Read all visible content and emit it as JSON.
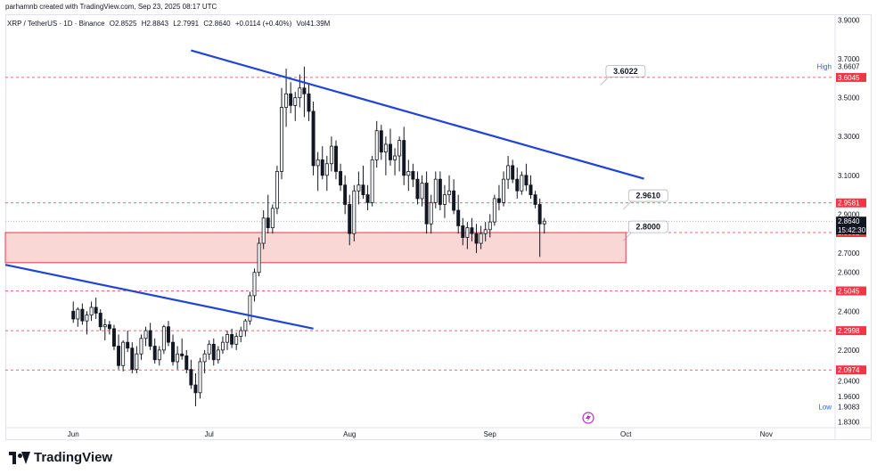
{
  "header": {
    "credit": "parhamnb created with TradingView.com, Sep 23, 2025 08:17 UTC",
    "symbol": "XRP / TetherUS · 1D · Binance",
    "open": "O2.8525",
    "high": "H2.8843",
    "low": "L2.7991",
    "close": "C2.8640",
    "change": "+0.0114 (+0.40%)",
    "volume": "Vol41.39M"
  },
  "footer": {
    "brand": "TradingView"
  },
  "colors": {
    "up": "#ffffff",
    "down": "#131722",
    "trendline": "#1e44d8",
    "level": "#f23645",
    "zone_fill": "#f8d7d4",
    "current": "#131722"
  },
  "chart_data": {
    "type": "candlestick",
    "x_axis_labels": [
      "Jun",
      "Jul",
      "Aug",
      "Sep",
      "Oct",
      "Nov"
    ],
    "y_ticks": [
      "3.9000",
      "3.7000",
      "3.5000",
      "3.3000",
      "3.1000",
      "2.9000",
      "2.7000",
      "2.6000",
      "2.4000",
      "2.2000",
      "2.0400",
      "1.9600",
      "1.8300"
    ],
    "y_tick_values": [
      3.9,
      3.7,
      3.5,
      3.3,
      3.1,
      2.9,
      2.7,
      2.6,
      2.4,
      2.2,
      2.04,
      1.96,
      1.83
    ],
    "ylim": [
      1.8,
      3.93
    ],
    "x_range_days": [
      -15,
      168
    ],
    "x_month_day": {
      "Jun": 0,
      "Jul": 30,
      "Aug": 61,
      "Sep": 92,
      "Oct": 122,
      "Nov": 153
    },
    "horizontal_levels": [
      {
        "value": 3.6045,
        "label": "3.6045"
      },
      {
        "value": 2.9581,
        "label": "2.9581"
      },
      {
        "value": 2.8052,
        "label": "2.8052"
      },
      {
        "value": 2.5045,
        "label": "2.5045"
      },
      {
        "value": 2.2998,
        "label": "2.2998"
      },
      {
        "value": 2.0974,
        "label": "2.0974"
      }
    ],
    "current_price": {
      "value": 2.864,
      "label": "2.8640",
      "countdown": "15:42:30"
    },
    "high_marker": {
      "tag": "High",
      "value": 3.6607,
      "label": "3.6607"
    },
    "low_marker": {
      "tag": "Low",
      "value": 1.9083,
      "label": "1.9083"
    },
    "callouts": [
      {
        "label": "3.6022",
        "value": 3.6022,
        "day": 118
      },
      {
        "label": "2.9610",
        "value": 2.961,
        "day": 123
      },
      {
        "label": "2.8000",
        "value": 2.8,
        "day": 123
      }
    ],
    "zone": {
      "top": 2.8052,
      "bottom": 2.65,
      "day_start": -15,
      "day_end": 122
    },
    "trendlines": [
      {
        "name": "upper",
        "points": [
          [
            26,
            3.7436
          ],
          [
            126,
            3.0825
          ]
        ]
      },
      {
        "name": "lower",
        "points": [
          [
            -15,
            2.639
          ],
          [
            53,
            2.3106
          ]
        ]
      }
    ],
    "candles": [
      [
        2.4,
        2.45,
        2.34,
        2.36
      ],
      [
        2.36,
        2.42,
        2.32,
        2.41
      ],
      [
        2.41,
        2.44,
        2.33,
        2.35
      ],
      [
        2.35,
        2.4,
        2.28,
        2.38
      ],
      [
        2.38,
        2.45,
        2.35,
        2.42
      ],
      [
        2.42,
        2.47,
        2.36,
        2.39
      ],
      [
        2.39,
        2.41,
        2.3,
        2.32
      ],
      [
        2.32,
        2.36,
        2.25,
        2.33
      ],
      [
        2.33,
        2.35,
        2.28,
        2.31
      ],
      [
        2.31,
        2.33,
        2.2,
        2.22
      ],
      [
        2.22,
        2.28,
        2.1,
        2.12
      ],
      [
        2.12,
        2.25,
        2.09,
        2.24
      ],
      [
        2.24,
        2.3,
        2.19,
        2.21
      ],
      [
        2.21,
        2.24,
        2.08,
        2.1
      ],
      [
        2.1,
        2.22,
        2.08,
        2.18
      ],
      [
        2.18,
        2.28,
        2.15,
        2.26
      ],
      [
        2.26,
        2.32,
        2.22,
        2.3
      ],
      [
        2.3,
        2.34,
        2.2,
        2.22
      ],
      [
        2.22,
        2.26,
        2.13,
        2.15
      ],
      [
        2.15,
        2.22,
        2.12,
        2.2
      ],
      [
        2.2,
        2.33,
        2.18,
        2.32
      ],
      [
        2.32,
        2.35,
        2.22,
        2.24
      ],
      [
        2.24,
        2.28,
        2.12,
        2.14
      ],
      [
        2.14,
        2.22,
        2.1,
        2.18
      ],
      [
        2.18,
        2.26,
        2.15,
        2.17
      ],
      [
        2.17,
        2.2,
        2.08,
        2.1
      ],
      [
        2.1,
        2.15,
        2.0,
        2.02
      ],
      [
        2.02,
        2.08,
        1.91,
        1.98
      ],
      [
        1.98,
        2.16,
        1.95,
        2.14
      ],
      [
        2.14,
        2.2,
        2.08,
        2.18
      ],
      [
        2.18,
        2.25,
        2.15,
        2.23
      ],
      [
        2.23,
        2.26,
        2.12,
        2.15
      ],
      [
        2.15,
        2.22,
        2.13,
        2.2
      ],
      [
        2.2,
        2.27,
        2.18,
        2.24
      ],
      [
        2.24,
        2.3,
        2.2,
        2.28
      ],
      [
        2.28,
        2.31,
        2.21,
        2.23
      ],
      [
        2.23,
        2.29,
        2.2,
        2.27
      ],
      [
        2.27,
        2.32,
        2.24,
        2.3
      ],
      [
        2.3,
        2.36,
        2.27,
        2.35
      ],
      [
        2.35,
        2.5,
        2.33,
        2.48
      ],
      [
        2.48,
        2.62,
        2.45,
        2.6
      ],
      [
        2.6,
        2.78,
        2.58,
        2.75
      ],
      [
        2.75,
        2.92,
        2.72,
        2.88
      ],
      [
        2.88,
        3.0,
        2.8,
        2.83
      ],
      [
        2.83,
        2.95,
        2.8,
        2.93
      ],
      [
        2.93,
        3.15,
        2.9,
        3.12
      ],
      [
        3.12,
        3.55,
        3.08,
        3.45
      ],
      [
        3.45,
        3.65,
        3.35,
        3.52
      ],
      [
        3.52,
        3.58,
        3.42,
        3.46
      ],
      [
        3.46,
        3.53,
        3.38,
        3.5
      ],
      [
        3.5,
        3.62,
        3.45,
        3.55
      ],
      [
        3.55,
        3.66,
        3.4,
        3.52
      ],
      [
        3.52,
        3.57,
        3.38,
        3.43
      ],
      [
        3.43,
        3.48,
        3.1,
        3.15
      ],
      [
        3.15,
        3.22,
        3.02,
        3.18
      ],
      [
        3.18,
        3.25,
        3.08,
        3.1
      ],
      [
        3.1,
        3.2,
        3.02,
        3.16
      ],
      [
        3.16,
        3.3,
        3.12,
        3.25
      ],
      [
        3.25,
        3.28,
        3.08,
        3.12
      ],
      [
        3.12,
        3.16,
        3.02,
        3.05
      ],
      [
        3.05,
        3.1,
        2.9,
        2.95
      ],
      [
        2.95,
        3.0,
        2.74,
        2.8
      ],
      [
        2.8,
        3.05,
        2.76,
        3.02
      ],
      [
        3.02,
        3.12,
        2.95,
        3.05
      ],
      [
        3.05,
        3.15,
        2.98,
        3.0
      ],
      [
        3.0,
        3.05,
        2.92,
        2.96
      ],
      [
        2.96,
        3.2,
        2.94,
        3.18
      ],
      [
        3.18,
        3.38,
        3.14,
        3.33
      ],
      [
        3.33,
        3.36,
        3.18,
        3.22
      ],
      [
        3.22,
        3.3,
        3.1,
        3.26
      ],
      [
        3.26,
        3.34,
        3.15,
        3.18
      ],
      [
        3.18,
        3.24,
        3.1,
        3.2
      ],
      [
        3.2,
        3.3,
        3.12,
        3.28
      ],
      [
        3.28,
        3.35,
        3.05,
        3.1
      ],
      [
        3.1,
        3.18,
        3.02,
        3.12
      ],
      [
        3.12,
        3.16,
        3.04,
        3.08
      ],
      [
        3.08,
        3.12,
        2.95,
        2.98
      ],
      [
        2.98,
        3.1,
        2.94,
        3.06
      ],
      [
        3.06,
        3.12,
        2.8,
        2.85
      ],
      [
        2.85,
        3.0,
        2.8,
        2.96
      ],
      [
        2.96,
        3.12,
        2.93,
        3.08
      ],
      [
        3.08,
        3.12,
        2.92,
        2.95
      ],
      [
        2.95,
        3.05,
        2.88,
        3.0
      ],
      [
        3.0,
        3.1,
        2.96,
        3.02
      ],
      [
        3.02,
        3.08,
        2.9,
        2.92
      ],
      [
        2.92,
        3.0,
        2.8,
        2.84
      ],
      [
        2.84,
        2.88,
        2.74,
        2.78
      ],
      [
        2.78,
        2.86,
        2.72,
        2.83
      ],
      [
        2.83,
        2.88,
        2.76,
        2.8
      ],
      [
        2.8,
        2.85,
        2.7,
        2.75
      ],
      [
        2.75,
        2.84,
        2.72,
        2.8
      ],
      [
        2.8,
        2.86,
        2.76,
        2.82
      ],
      [
        2.82,
        2.9,
        2.78,
        2.86
      ],
      [
        2.86,
        3.0,
        2.84,
        2.98
      ],
      [
        2.98,
        3.05,
        2.92,
        2.96
      ],
      [
        2.96,
        3.12,
        2.94,
        3.08
      ],
      [
        3.08,
        3.2,
        3.03,
        3.15
      ],
      [
        3.15,
        3.18,
        3.06,
        3.08
      ],
      [
        3.08,
        3.14,
        2.98,
        3.02
      ],
      [
        3.02,
        3.12,
        3.0,
        3.1
      ],
      [
        3.1,
        3.16,
        3.02,
        3.05
      ],
      [
        3.05,
        3.1,
        2.98,
        3.0
      ],
      [
        3.0,
        3.02,
        2.93,
        2.95
      ],
      [
        2.95,
        2.98,
        2.68,
        2.85
      ],
      [
        2.85,
        2.88,
        2.8,
        2.864
      ]
    ]
  }
}
